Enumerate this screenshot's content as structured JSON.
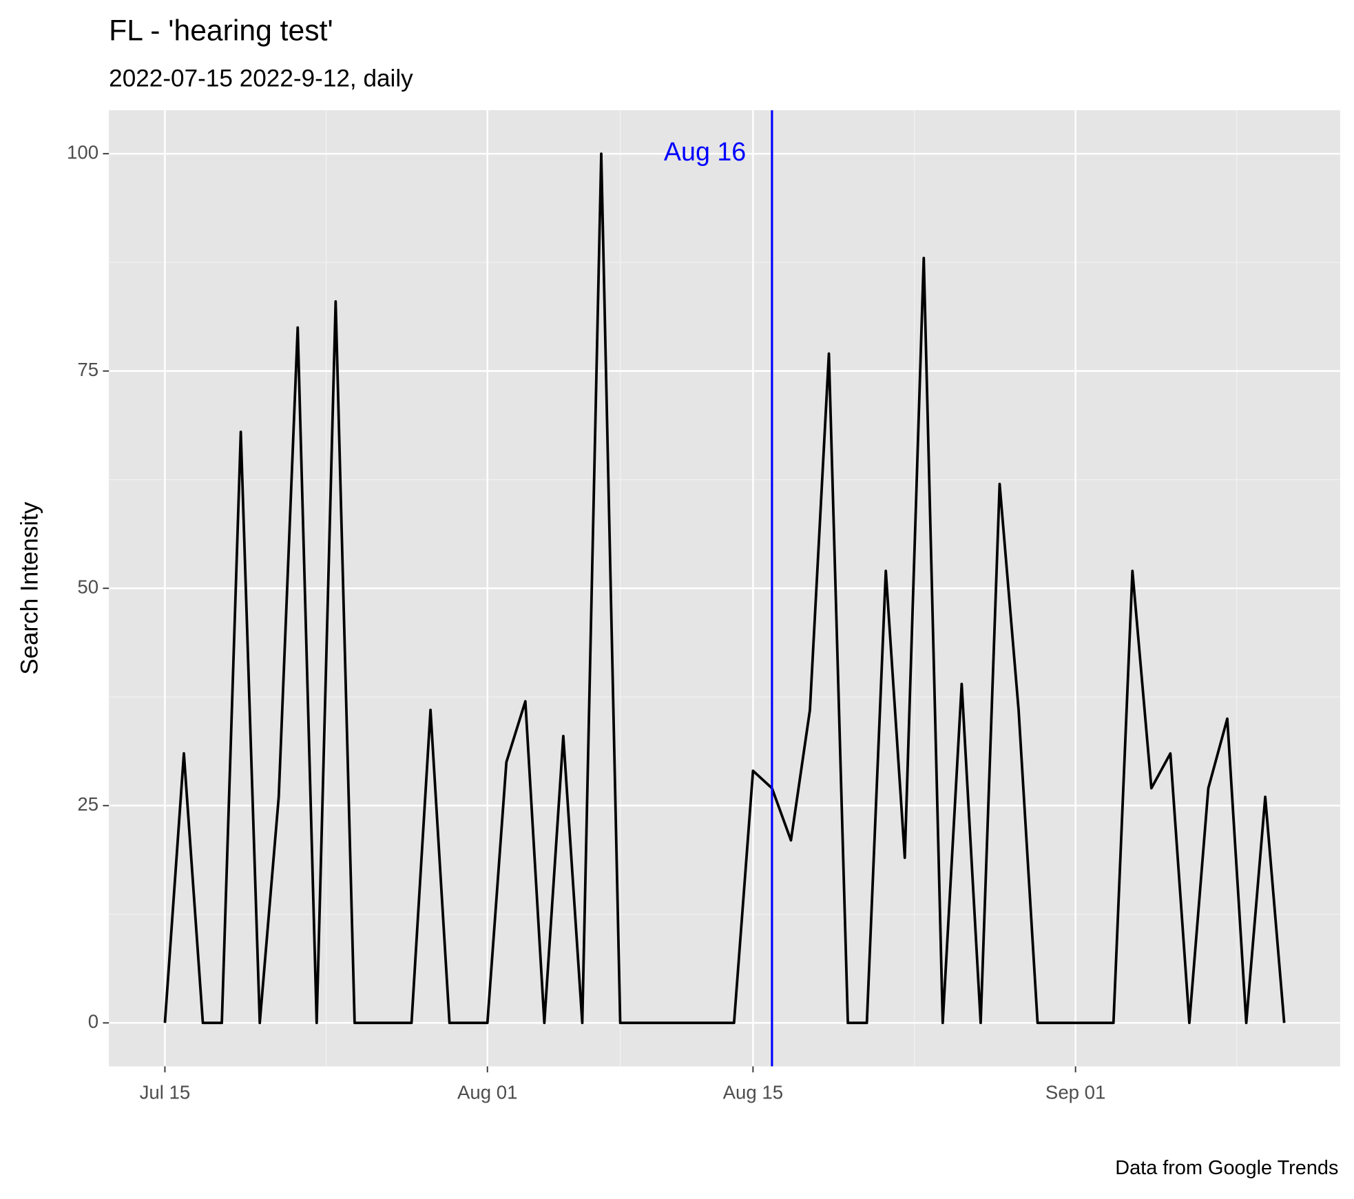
{
  "chart_data": {
    "type": "line",
    "title": "FL  - 'hearing test'",
    "subtitle": "2022-07-15 2022-9-12, daily",
    "y_label": "Search Intensity",
    "caption": "Data from Google Trends",
    "x": [
      "Jul 15",
      "Jul 16",
      "Jul 17",
      "Jul 18",
      "Jul 19",
      "Jul 20",
      "Jul 21",
      "Jul 22",
      "Jul 23",
      "Jul 24",
      "Jul 25",
      "Jul 26",
      "Jul 27",
      "Jul 28",
      "Jul 29",
      "Jul 30",
      "Jul 31",
      "Aug 01",
      "Aug 02",
      "Aug 03",
      "Aug 04",
      "Aug 05",
      "Aug 06",
      "Aug 07",
      "Aug 08",
      "Aug 09",
      "Aug 10",
      "Aug 11",
      "Aug 12",
      "Aug 13",
      "Aug 14",
      "Aug 15",
      "Aug 16",
      "Aug 17",
      "Aug 18",
      "Aug 19",
      "Aug 20",
      "Aug 21",
      "Aug 22",
      "Aug 23",
      "Aug 24",
      "Aug 25",
      "Aug 26",
      "Aug 27",
      "Aug 28",
      "Aug 29",
      "Aug 30",
      "Aug 31",
      "Sep 01",
      "Sep 02",
      "Sep 03",
      "Sep 04",
      "Sep 05",
      "Sep 06",
      "Sep 07",
      "Sep 08",
      "Sep 09",
      "Sep 10",
      "Sep 11",
      "Sep 12"
    ],
    "series": [
      {
        "name": "hearing test",
        "color": "#000000",
        "values": [
          0,
          31,
          0,
          0,
          68,
          0,
          26,
          80,
          0,
          83,
          0,
          0,
          0,
          0,
          36,
          0,
          0,
          0,
          30,
          37,
          0,
          33,
          0,
          100,
          0,
          0,
          0,
          0,
          0,
          0,
          0,
          29,
          27,
          21,
          36,
          77,
          0,
          0,
          52,
          19,
          88,
          0,
          39,
          0,
          62,
          36,
          0,
          0,
          0,
          0,
          0,
          52,
          27,
          31,
          0,
          27,
          35,
          0,
          26,
          0
        ]
      }
    ],
    "xticks": [
      "Jul 15",
      "Aug 01",
      "Aug 15",
      "Sep 01"
    ],
    "ylim": [
      -5,
      105
    ],
    "yticks": [
      0,
      25,
      50,
      75,
      100
    ],
    "grid": true,
    "vline": {
      "x": "Aug 16",
      "color": "#0000ff"
    },
    "annotation": {
      "text": "Aug 16",
      "x": "Aug 16",
      "y": 100,
      "color": "#0000ff"
    }
  }
}
